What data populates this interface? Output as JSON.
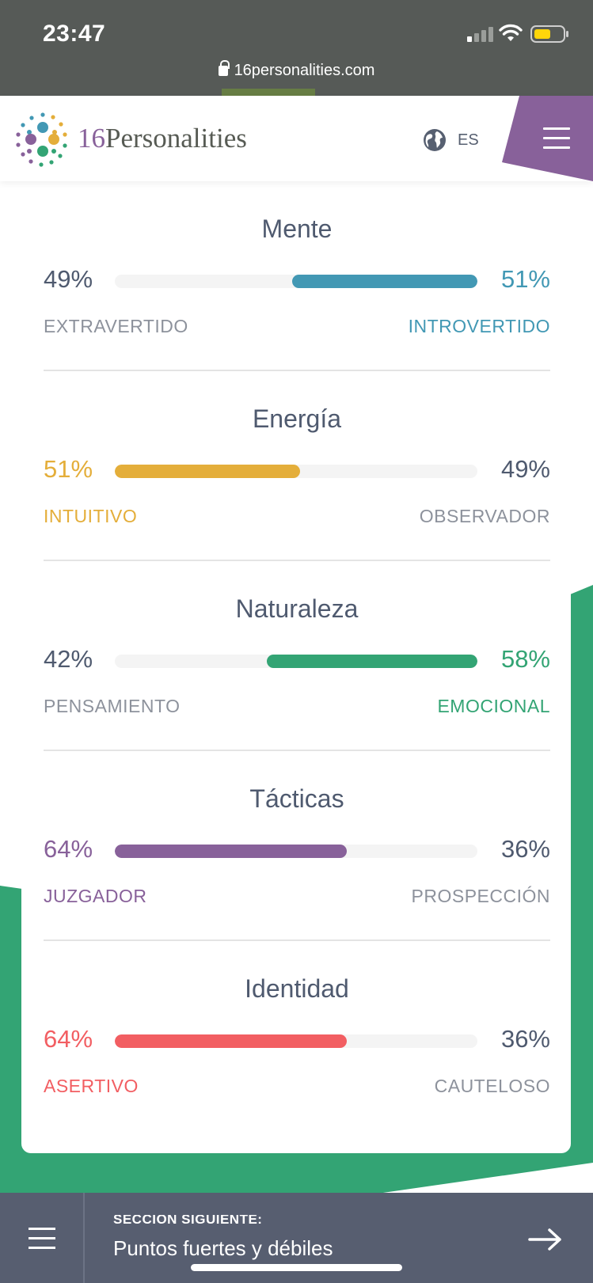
{
  "status_bar": {
    "time": "23:47",
    "url": "16personalities.com"
  },
  "header": {
    "logo_number": "16",
    "logo_word": "Personalities",
    "language_code": "ES",
    "menu_color": "#88619a"
  },
  "traits": [
    {
      "title": "Mente",
      "left_percent": "49%",
      "right_percent": "51%",
      "left_label": "EXTRAVERTIDO",
      "right_label": "INTROVERTIDO",
      "dominant_side": "right",
      "dominant_value": 51,
      "color": "#4298b4"
    },
    {
      "title": "Energía",
      "left_percent": "51%",
      "right_percent": "49%",
      "left_label": "INTUITIVO",
      "right_label": "OBSERVADOR",
      "dominant_side": "left",
      "dominant_value": 51,
      "color": "#e4ae3a"
    },
    {
      "title": "Naturaleza",
      "left_percent": "42%",
      "right_percent": "58%",
      "left_label": "PENSAMIENTO",
      "right_label": "EMOCIONAL",
      "dominant_side": "right",
      "dominant_value": 58,
      "color": "#33a474"
    },
    {
      "title": "Tácticas",
      "left_percent": "64%",
      "right_percent": "36%",
      "left_label": "JUZGADOR",
      "right_label": "PROSPECCIÓN",
      "dominant_side": "left",
      "dominant_value": 64,
      "color": "#88619a"
    },
    {
      "title": "Identidad",
      "left_percent": "64%",
      "right_percent": "36%",
      "left_label": "ASERTIVO",
      "right_label": "CAUTELOSO",
      "dominant_side": "left",
      "dominant_value": 64,
      "color": "#f25e62"
    }
  ],
  "neutral_text_color": "#4f5a6f",
  "neutral_label_color": "#8d929c",
  "background_shape_color": "#33a474",
  "bottom_bar": {
    "kicker": "SECCIÓN SIGUIENTE:",
    "next_section": "Puntos fuertes y débiles"
  }
}
